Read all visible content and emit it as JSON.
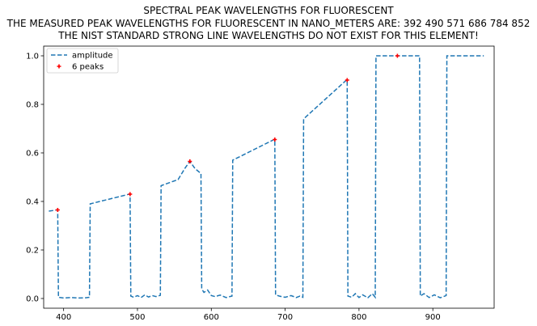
{
  "chart_data": {
    "type": "line",
    "title_lines": [
      "SPECTRAL PEAK WAVELENGTHS FOR FLUORESCENT",
      "THE MEASURED PEAK WAVELENGTHS FOR FLUORESCENT IN NANO_METERS ARE: 392 490 571 686 784 852",
      "THE NIST STANDARD STRONG LINE WAVELENGTHS DO NOT EXIST FOR THIS ELEMENT!"
    ],
    "xlabel": "",
    "ylabel": "",
    "xlim": [
      373,
      983
    ],
    "ylim": [
      -0.04,
      1.04
    ],
    "x_ticks": [
      400,
      500,
      600,
      700,
      800,
      900
    ],
    "y_ticks": [
      0.0,
      0.2,
      0.4,
      0.6,
      0.8,
      1.0
    ],
    "y_tick_labels": [
      "0.0",
      "0.2",
      "0.4",
      "0.6",
      "0.8",
      "1.0"
    ],
    "grid": false,
    "legend": {
      "position": "top-left",
      "entries": [
        "amplitude",
        "6 peaks"
      ]
    },
    "series": [
      {
        "name": "amplitude",
        "style": "dashed",
        "color": "#1f77b4",
        "points": [
          [
            380,
            0.36
          ],
          [
            391,
            0.365
          ],
          [
            392,
            0.365
          ],
          [
            393,
            0.005
          ],
          [
            400,
            0.002
          ],
          [
            410,
            0.004
          ],
          [
            420,
            0.002
          ],
          [
            430,
            0.003
          ],
          [
            435,
            0.005
          ],
          [
            436,
            0.39
          ],
          [
            489,
            0.43
          ],
          [
            490,
            0.43
          ],
          [
            491,
            0.01
          ],
          [
            495,
            0.005
          ],
          [
            500,
            0.012
          ],
          [
            505,
            0.004
          ],
          [
            510,
            0.015
          ],
          [
            515,
            0.006
          ],
          [
            520,
            0.012
          ],
          [
            525,
            0.008
          ],
          [
            531,
            0.013
          ],
          [
            532,
            0.465
          ],
          [
            555,
            0.49
          ],
          [
            565,
            0.54
          ],
          [
            571,
            0.565
          ],
          [
            578,
            0.535
          ],
          [
            586,
            0.515
          ],
          [
            587,
            0.04
          ],
          [
            590,
            0.025
          ],
          [
            595,
            0.035
          ],
          [
            600,
            0.012
          ],
          [
            605,
            0.008
          ],
          [
            612,
            0.014
          ],
          [
            620,
            0.004
          ],
          [
            628,
            0.01
          ],
          [
            629,
            0.57
          ],
          [
            685,
            0.655
          ],
          [
            686,
            0.655
          ],
          [
            687,
            0.015
          ],
          [
            692,
            0.01
          ],
          [
            700,
            0.005
          ],
          [
            708,
            0.012
          ],
          [
            715,
            0.004
          ],
          [
            720,
            0.01
          ],
          [
            724,
            0.005
          ],
          [
            725,
            0.74
          ],
          [
            783,
            0.9
          ],
          [
            784,
            0.9
          ],
          [
            785,
            0.01
          ],
          [
            790,
            0.005
          ],
          [
            795,
            0.02
          ],
          [
            800,
            0.004
          ],
          [
            805,
            0.015
          ],
          [
            812,
            0.003
          ],
          [
            818,
            0.02
          ],
          [
            822,
            0.005
          ],
          [
            823,
            1.0
          ],
          [
            852,
            1.0
          ],
          [
            882,
            1.0
          ],
          [
            883,
            0.01
          ],
          [
            888,
            0.02
          ],
          [
            895,
            0.004
          ],
          [
            902,
            0.015
          ],
          [
            910,
            0.003
          ],
          [
            918,
            0.012
          ],
          [
            919,
            1.0
          ],
          [
            969,
            1.0
          ]
        ]
      },
      {
        "name": "6 peaks",
        "style": "markers",
        "color": "#ff0000",
        "points": [
          [
            392,
            0.365
          ],
          [
            490,
            0.43
          ],
          [
            571,
            0.565
          ],
          [
            686,
            0.655
          ],
          [
            784,
            0.9
          ],
          [
            852,
            1.0
          ]
        ]
      }
    ]
  }
}
